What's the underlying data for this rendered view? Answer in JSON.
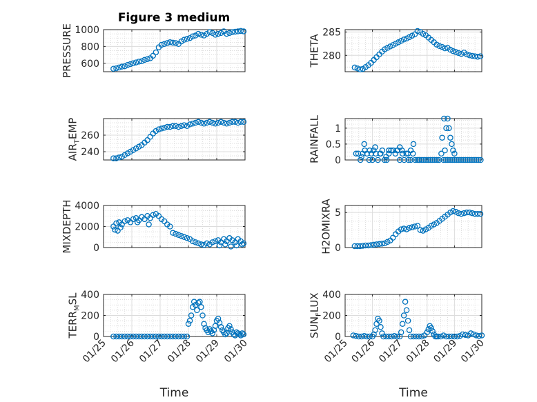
{
  "figure": {
    "title": "Figure 3 medium",
    "marker_color": "#0072bd"
  },
  "chart_data": [
    {
      "type": "scatter",
      "ylabel": "PRESSURE",
      "xlim": [
        0,
        5
      ],
      "ylim": [
        500,
        1000
      ],
      "yticks": [
        600,
        800,
        1000
      ],
      "ytick_labels": [
        "600",
        "800",
        "1000"
      ],
      "xticks": [
        0,
        1,
        2,
        3,
        4,
        5
      ],
      "xtick_labels": [],
      "grid": true,
      "x": [
        0.35,
        0.45,
        0.55,
        0.65,
        0.75,
        0.85,
        0.95,
        1.05,
        1.15,
        1.25,
        1.35,
        1.45,
        1.55,
        1.65,
        1.75,
        1.85,
        1.95,
        2.05,
        2.15,
        2.25,
        2.35,
        2.45,
        2.55,
        2.65,
        2.75,
        2.85,
        2.95,
        3.05,
        3.15,
        3.25,
        3.35,
        3.45,
        3.55,
        3.65,
        3.75,
        3.85,
        3.95,
        4.05,
        4.15,
        4.25,
        4.35,
        4.45,
        4.55,
        4.65,
        4.75,
        4.85,
        4.95
      ],
      "y": [
        535,
        540,
        550,
        560,
        565,
        580,
        590,
        600,
        610,
        620,
        625,
        640,
        650,
        660,
        690,
        730,
        790,
        820,
        830,
        840,
        850,
        845,
        840,
        830,
        860,
        880,
        890,
        900,
        920,
        930,
        950,
        940,
        930,
        950,
        970,
        960,
        940,
        950,
        960,
        980,
        950,
        960,
        970,
        975,
        980,
        985,
        980
      ]
    },
    {
      "type": "scatter",
      "ylabel": "THETA",
      "xlim": [
        0,
        5
      ],
      "ylim": [
        276.5,
        285.5
      ],
      "yticks": [
        280,
        285
      ],
      "ytick_labels": [
        "280",
        "285"
      ],
      "xticks": [
        0,
        1,
        2,
        3,
        4,
        5
      ],
      "xtick_labels": [],
      "grid": true,
      "x": [
        0.35,
        0.45,
        0.55,
        0.65,
        0.75,
        0.85,
        0.95,
        1.05,
        1.15,
        1.25,
        1.35,
        1.45,
        1.55,
        1.65,
        1.75,
        1.85,
        1.95,
        2.05,
        2.15,
        2.25,
        2.35,
        2.45,
        2.55,
        2.65,
        2.75,
        2.85,
        2.95,
        3.05,
        3.15,
        3.25,
        3.35,
        3.45,
        3.55,
        3.65,
        3.75,
        3.85,
        3.95,
        4.05,
        4.15,
        4.25,
        4.35,
        4.45,
        4.55,
        4.65,
        4.75,
        4.85,
        4.95
      ],
      "y": [
        277.4,
        277.2,
        277.0,
        277.1,
        277.5,
        277.9,
        278.4,
        279.0,
        279.6,
        280.2,
        280.8,
        281.3,
        281.6,
        281.9,
        282.2,
        282.5,
        282.8,
        283.1,
        283.4,
        283.6,
        283.9,
        284.2,
        284.5,
        285.2,
        285.0,
        284.6,
        284.3,
        283.8,
        283.3,
        282.8,
        282.3,
        282.0,
        281.8,
        281.5,
        281.6,
        281.2,
        280.9,
        280.7,
        280.5,
        280.3,
        280.6,
        280.2,
        280.0,
        279.9,
        279.8,
        279.7,
        279.8
      ]
    },
    {
      "type": "scatter",
      "ylabel": "AIR_TEMP",
      "xlim": [
        0,
        5
      ],
      "ylim": [
        230,
        280
      ],
      "yticks": [
        240,
        260
      ],
      "ytick_labels": [
        "240",
        "260"
      ],
      "xticks": [
        0,
        1,
        2,
        3,
        4,
        5
      ],
      "xtick_labels": [],
      "grid": true,
      "x": [
        0.35,
        0.45,
        0.55,
        0.65,
        0.75,
        0.85,
        0.95,
        1.05,
        1.15,
        1.25,
        1.35,
        1.45,
        1.55,
        1.65,
        1.75,
        1.85,
        1.95,
        2.05,
        2.15,
        2.25,
        2.35,
        2.45,
        2.55,
        2.65,
        2.75,
        2.85,
        2.95,
        3.05,
        3.15,
        3.25,
        3.35,
        3.45,
        3.55,
        3.65,
        3.75,
        3.85,
        3.95,
        4.05,
        4.15,
        4.25,
        4.35,
        4.45,
        4.55,
        4.65,
        4.75,
        4.85,
        4.95
      ],
      "y": [
        232,
        232,
        233,
        234,
        236,
        238,
        240,
        242,
        244,
        246,
        248,
        251,
        254,
        258,
        262,
        265,
        267,
        268,
        269,
        270,
        270,
        271,
        271,
        270,
        271,
        272,
        271,
        273,
        274,
        275,
        276,
        275,
        274,
        275,
        276,
        275,
        274,
        275,
        276,
        275,
        274,
        275,
        276,
        276,
        275,
        276,
        276
      ]
    },
    {
      "type": "scatter",
      "ylabel": "RAINFALL",
      "xlim": [
        0,
        5
      ],
      "ylim": [
        0,
        1.3
      ],
      "yticks": [
        0,
        0.5,
        1
      ],
      "ytick_labels": [
        "0",
        "0.5",
        "1"
      ],
      "xticks": [
        0,
        1,
        2,
        3,
        4,
        5
      ],
      "xtick_labels": [],
      "grid": true,
      "x": [
        0.4,
        0.48,
        0.56,
        0.64,
        0.72,
        0.8,
        0.88,
        0.96,
        1.04,
        1.12,
        1.2,
        1.28,
        1.36,
        1.44,
        1.52,
        1.6,
        1.68,
        1.76,
        1.84,
        1.92,
        2.0,
        2.08,
        2.16,
        2.24,
        2.32,
        2.4,
        2.48,
        2.56,
        2.64,
        2.72,
        2.8,
        2.88,
        2.96,
        3.04,
        3.12,
        3.2,
        3.28,
        3.36,
        3.44,
        3.52,
        3.6,
        3.68,
        3.76,
        3.84,
        3.92,
        4.0,
        4.08,
        4.16,
        4.24,
        4.32,
        4.4,
        4.48,
        4.56,
        4.64,
        4.72,
        4.8,
        4.88,
        4.96,
        0.7,
        0.9,
        1.1,
        1.3,
        1.5,
        1.9,
        2.1,
        2.3,
        2.5,
        3.55,
        3.62,
        3.7,
        3.75,
        3.8,
        3.85,
        3.9,
        3.95,
        4.0,
        3.65,
        0.6,
        1.0,
        1.6,
        2.0,
        2.4,
        2.7
      ],
      "y": [
        0.2,
        0.2,
        0.0,
        0.2,
        0.3,
        0.2,
        0.0,
        0.2,
        0.3,
        0.2,
        0.0,
        0.2,
        0.3,
        0.0,
        0.0,
        0.2,
        0.3,
        0.3,
        0.2,
        0.3,
        0.4,
        0.3,
        0.0,
        0.2,
        0.0,
        0.0,
        0.2,
        0.0,
        0.0,
        0.0,
        0.0,
        0.0,
        0.0,
        0.0,
        0.0,
        0.0,
        0.0,
        0.0,
        0.0,
        0.2,
        0.0,
        0.0,
        0.0,
        0.0,
        0.0,
        0.0,
        0.0,
        0.0,
        0.0,
        0.0,
        0.0,
        0.0,
        0.0,
        0.0,
        0.0,
        0.0,
        0.0,
        0.0,
        0.5,
        0.3,
        0.4,
        0.2,
        0.1,
        0.3,
        0.2,
        0.2,
        0.5,
        0.7,
        1.3,
        1.0,
        1.3,
        1.0,
        0.7,
        0.5,
        0.3,
        0.2,
        0.3,
        0.1,
        0.0,
        0.3,
        0.0,
        0.3,
        0.0
      ]
    },
    {
      "type": "scatter",
      "ylabel": "MIXDEPTH",
      "xlim": [
        0,
        5
      ],
      "ylim": [
        0,
        4000
      ],
      "yticks": [
        0,
        2000,
        4000
      ],
      "ytick_labels": [
        "0",
        "2000",
        "4000"
      ],
      "xticks": [
        0,
        1,
        2,
        3,
        4,
        5
      ],
      "xtick_labels": [],
      "grid": true,
      "x": [
        0.35,
        0.45,
        0.55,
        0.65,
        0.75,
        0.85,
        0.95,
        1.05,
        1.15,
        1.25,
        1.35,
        1.45,
        1.55,
        1.65,
        1.75,
        1.85,
        1.95,
        2.05,
        2.15,
        2.25,
        2.35,
        2.45,
        2.55,
        2.65,
        2.75,
        2.85,
        2.95,
        3.05,
        3.15,
        3.25,
        3.35,
        3.45,
        3.55,
        3.65,
        3.75,
        3.85,
        3.95,
        4.05,
        4.15,
        4.25,
        4.35,
        4.45,
        4.55,
        4.65,
        4.75,
        4.85,
        4.95,
        0.4,
        0.5,
        0.6,
        1.2,
        1.6,
        4.1,
        4.3,
        4.5,
        4.7,
        4.9
      ],
      "y": [
        2000,
        2300,
        2400,
        2200,
        2500,
        2600,
        2400,
        2700,
        2800,
        2600,
        2900,
        2700,
        3000,
        2800,
        3100,
        3200,
        3000,
        2700,
        2500,
        2200,
        2000,
        1400,
        1300,
        1200,
        1100,
        1000,
        900,
        800,
        600,
        500,
        400,
        300,
        250,
        400,
        300,
        500,
        600,
        700,
        500,
        800,
        600,
        900,
        700,
        500,
        800,
        600,
        400,
        1700,
        1600,
        1900,
        2400,
        2200,
        200,
        300,
        100,
        200,
        300
      ]
    },
    {
      "type": "scatter",
      "ylabel": "H2OMIXRA",
      "xlim": [
        0,
        5
      ],
      "ylim": [
        0,
        6
      ],
      "yticks": [
        0,
        5
      ],
      "ytick_labels": [
        "0",
        "5"
      ],
      "xticks": [
        0,
        1,
        2,
        3,
        4,
        5
      ],
      "xtick_labels": [],
      "grid": true,
      "x": [
        0.35,
        0.45,
        0.55,
        0.65,
        0.75,
        0.85,
        0.95,
        1.05,
        1.15,
        1.25,
        1.35,
        1.45,
        1.55,
        1.65,
        1.75,
        1.85,
        1.95,
        2.05,
        2.15,
        2.25,
        2.35,
        2.45,
        2.55,
        2.65,
        2.75,
        2.85,
        2.95,
        3.05,
        3.15,
        3.25,
        3.35,
        3.45,
        3.55,
        3.65,
        3.75,
        3.85,
        3.95,
        4.05,
        4.15,
        4.25,
        4.35,
        4.45,
        4.55,
        4.65,
        4.75,
        4.85,
        4.95
      ],
      "y": [
        0.2,
        0.2,
        0.2,
        0.25,
        0.3,
        0.3,
        0.35,
        0.4,
        0.45,
        0.5,
        0.55,
        0.6,
        0.8,
        1.0,
        1.4,
        1.9,
        2.3,
        2.6,
        2.7,
        2.6,
        2.8,
        2.9,
        3.0,
        3.1,
        2.5,
        2.4,
        2.6,
        2.8,
        3.1,
        3.3,
        3.5,
        3.8,
        4.1,
        4.4,
        4.7,
        5.0,
        5.2,
        5.1,
        4.9,
        4.8,
        4.9,
        5.0,
        5.0,
        4.9,
        4.8,
        4.8,
        4.8
      ]
    },
    {
      "type": "scatter",
      "ylabel": "TERR_MSL",
      "xlim": [
        0,
        5
      ],
      "ylim": [
        0,
        400
      ],
      "yticks": [
        0,
        200,
        400
      ],
      "ytick_labels": [
        "0",
        "200",
        "400"
      ],
      "xticks": [
        0,
        1,
        2,
        3,
        4,
        5
      ],
      "xtick_labels": [
        "01/25",
        "01/26",
        "01/27",
        "01/28",
        "01/29",
        "01/30"
      ],
      "xlabel": "Time",
      "grid": true,
      "x": [
        0.35,
        0.45,
        0.55,
        0.65,
        0.75,
        0.85,
        0.95,
        1.05,
        1.15,
        1.25,
        1.35,
        1.45,
        1.55,
        1.65,
        1.75,
        1.85,
        1.95,
        2.05,
        2.15,
        2.25,
        2.35,
        2.45,
        2.55,
        2.65,
        2.75,
        2.85,
        2.95,
        3.0,
        3.05,
        3.1,
        3.15,
        3.2,
        3.25,
        3.3,
        3.35,
        3.4,
        3.45,
        3.5,
        3.55,
        3.6,
        3.65,
        3.7,
        3.75,
        3.8,
        3.85,
        3.9,
        3.95,
        4.0,
        4.05,
        4.1,
        4.15,
        4.2,
        4.25,
        4.3,
        4.35,
        4.4,
        4.45,
        4.5,
        4.55,
        4.6,
        4.65,
        4.7,
        4.75,
        4.8,
        4.85,
        4.9,
        4.95
      ],
      "y": [
        0,
        0,
        0,
        0,
        0,
        0,
        0,
        0,
        0,
        0,
        0,
        0,
        0,
        0,
        0,
        0,
        0,
        0,
        0,
        0,
        0,
        0,
        0,
        0,
        0,
        0,
        0,
        120,
        150,
        200,
        280,
        330,
        300,
        250,
        320,
        330,
        280,
        200,
        120,
        80,
        60,
        40,
        70,
        50,
        30,
        60,
        100,
        150,
        170,
        130,
        90,
        60,
        40,
        20,
        30,
        80,
        100,
        70,
        40,
        20,
        10,
        40,
        30,
        20,
        10,
        30,
        20
      ]
    },
    {
      "type": "scatter",
      "ylabel": "SUN_FLUX",
      "xlim": [
        0,
        5
      ],
      "ylim": [
        0,
        400
      ],
      "yticks": [
        0,
        200,
        400
      ],
      "ytick_labels": [
        "0",
        "200",
        "400"
      ],
      "xticks": [
        0,
        1,
        2,
        3,
        4,
        5
      ],
      "xtick_labels": [
        "01/25",
        "01/26",
        "01/27",
        "01/28",
        "01/29",
        "01/30"
      ],
      "xlabel": "Time",
      "grid": true,
      "x": [
        0.3,
        0.4,
        0.5,
        0.6,
        0.7,
        0.8,
        0.9,
        1.0,
        1.05,
        1.1,
        1.15,
        1.2,
        1.25,
        1.3,
        1.35,
        1.4,
        1.5,
        1.6,
        1.7,
        1.8,
        1.9,
        2.0,
        2.05,
        2.1,
        2.15,
        2.2,
        2.25,
        2.3,
        2.35,
        2.4,
        2.5,
        2.6,
        2.7,
        2.8,
        2.9,
        3.0,
        3.05,
        3.1,
        3.15,
        3.2,
        3.25,
        3.3,
        3.35,
        3.4,
        3.5,
        3.6,
        3.7,
        3.8,
        3.9,
        4.0,
        4.1,
        4.2,
        4.3,
        4.4,
        4.5,
        4.6,
        4.7,
        4.8,
        4.9,
        5.0
      ],
      "y": [
        10,
        5,
        0,
        0,
        5,
        0,
        0,
        0,
        20,
        60,
        120,
        170,
        150,
        90,
        30,
        0,
        0,
        0,
        0,
        5,
        0,
        0,
        40,
        120,
        200,
        330,
        250,
        150,
        60,
        0,
        0,
        0,
        0,
        0,
        10,
        40,
        70,
        100,
        80,
        50,
        20,
        0,
        0,
        0,
        0,
        10,
        0,
        0,
        0,
        0,
        0,
        5,
        20,
        15,
        10,
        30,
        20,
        10,
        5,
        10
      ]
    }
  ]
}
